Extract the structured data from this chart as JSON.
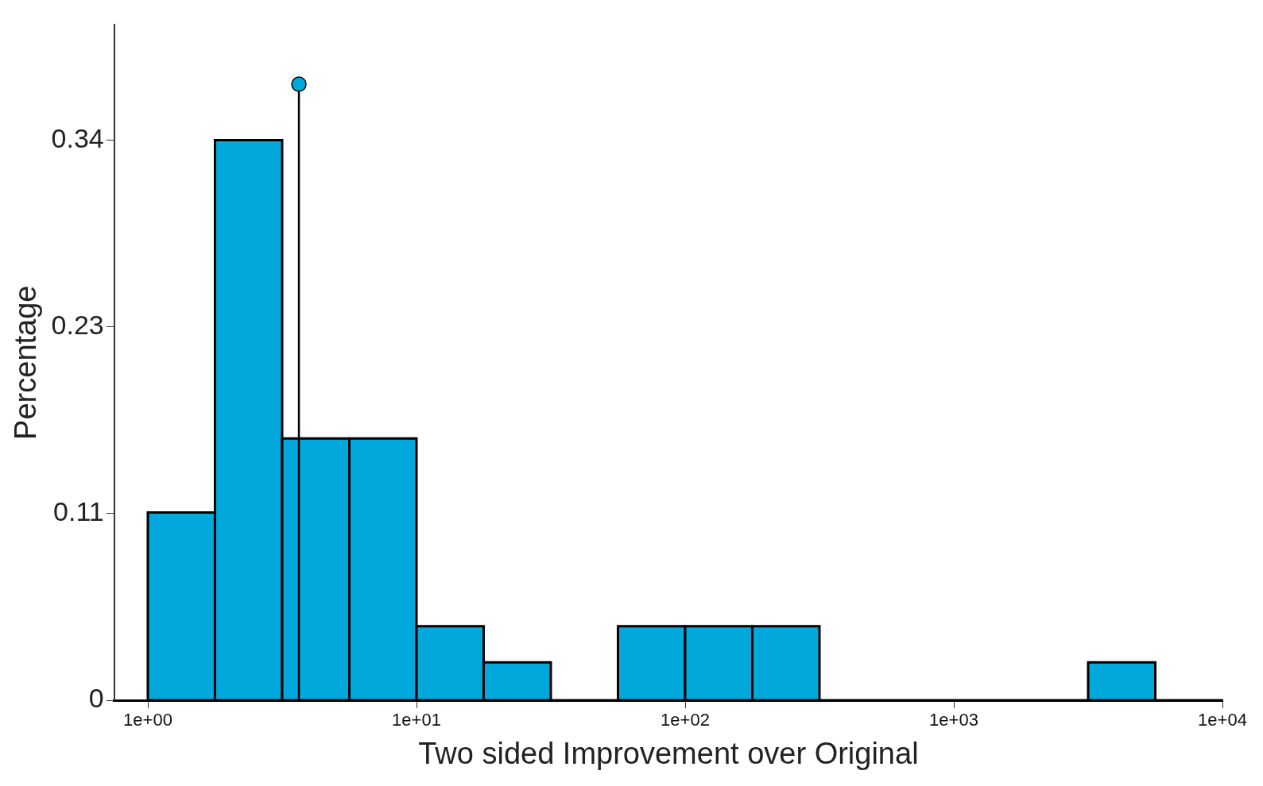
{
  "chart_data": {
    "type": "histogram",
    "xlabel": "Two sided Improvement over Original",
    "ylabel": "Percentage",
    "bins": [
      1,
      1.778,
      3.162,
      5.623,
      10,
      17.78,
      31.62,
      56.23,
      100,
      177.8,
      316.2,
      562.3,
      1000,
      1778,
      3162,
      5623,
      10000
    ],
    "values": [
      0.114,
      0.34,
      0.159,
      0.159,
      0.045,
      0.023,
      0,
      0.045,
      0.045,
      0.045,
      0,
      0,
      0,
      0,
      0.023,
      0
    ],
    "color": "#00a8dc",
    "log": "x",
    "xlim": [
      0.75,
      10000
    ],
    "xticks": [
      {
        "value": 1,
        "label": "1e+00"
      },
      {
        "value": 10,
        "label": "1e+01"
      },
      {
        "value": 100,
        "label": "1e+02"
      },
      {
        "value": 1000,
        "label": "1e+03"
      },
      {
        "value": 10000,
        "label": "1e+04"
      }
    ],
    "ylim": [
      0,
      0.41
    ],
    "yticks": [
      0,
      {
        "value": 0.1133,
        "label": "0.11"
      },
      {
        "value": 0.2267,
        "label": "0.23"
      },
      0.34
    ],
    "grid": false,
    "series": [
      {
        "type": "lollipop",
        "x": [
          3.65
        ],
        "values": [
          0.374
        ],
        "color": "#00a8dc"
      }
    ]
  }
}
